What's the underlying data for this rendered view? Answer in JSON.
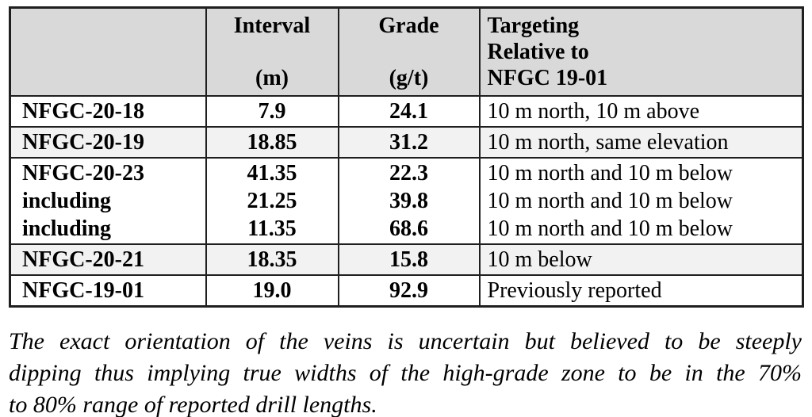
{
  "table": {
    "header": {
      "col1": "",
      "col2_lines": [
        "Interval",
        "",
        "(m)"
      ],
      "col3_lines": [
        "Grade",
        "",
        "(g/t)"
      ],
      "col4_lines": [
        "Targeting",
        "Relative to",
        "NFGC 19-01"
      ]
    },
    "rows": [
      {
        "shaded": false,
        "lines": [
          {
            "hole": "NFGC-20-18",
            "interval": "7.9",
            "grade": "24.1",
            "targeting": "10 m north, 10 m above"
          }
        ]
      },
      {
        "shaded": true,
        "lines": [
          {
            "hole": "NFGC-20-19",
            "interval": "18.85",
            "grade": "31.2",
            "targeting": "10 m north, same elevation"
          }
        ]
      },
      {
        "shaded": false,
        "lines": [
          {
            "hole": "NFGC-20-23",
            "interval": "41.35",
            "grade": "22.3",
            "targeting": "10 m north and 10 m below"
          },
          {
            "hole": "including",
            "interval": "21.25",
            "grade": "39.8",
            "targeting": "10 m north and 10 m below"
          },
          {
            "hole": "including",
            "interval": "11.35",
            "grade": "68.6",
            "targeting": "10 m north and 10 m below"
          }
        ]
      },
      {
        "shaded": true,
        "lines": [
          {
            "hole": "NFGC-20-21",
            "interval": "18.35",
            "grade": "15.8",
            "targeting": "10 m below"
          }
        ]
      },
      {
        "shaded": false,
        "lines": [
          {
            "hole": "NFGC-19-01",
            "interval": "19.0",
            "grade": "92.9",
            "targeting": "Previously reported"
          }
        ]
      }
    ]
  },
  "note": {
    "lines": [
      "The exact orientation of the veins is uncertain but believed to be steeply",
      "dipping thus implying true widths of the high-grade zone to be in the 70%",
      "to 80% range of reported drill lengths."
    ]
  },
  "colors": {
    "header_bg": "#d9d9d9",
    "shaded_row_bg": "#f2f2f2",
    "border": "#1f1f1f",
    "text": "#000000",
    "page_bg": "#ffffff"
  }
}
